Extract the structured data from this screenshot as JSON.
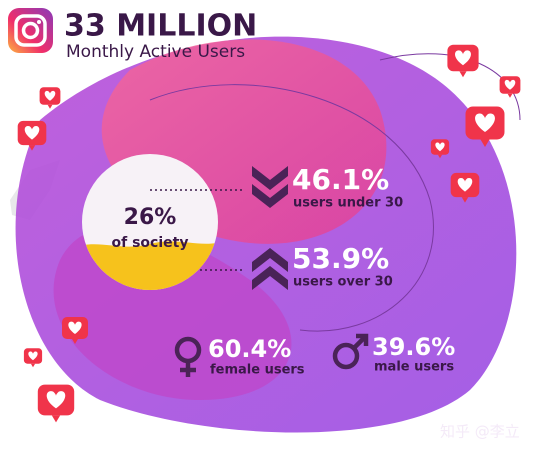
{
  "header": {
    "title": "33 MILLION",
    "subtitle": "Monthly Active Users"
  },
  "society": {
    "value": "26%",
    "label": "of society"
  },
  "age": [
    {
      "value": "46.1%",
      "label": "users under 30"
    },
    {
      "value": "53.9%",
      "label": "users over 30"
    }
  ],
  "gender": [
    {
      "value": "60.4%",
      "label": "female users"
    },
    {
      "value": "39.6%",
      "label": "male users"
    }
  ],
  "watermark": "知乎 @李立"
}
